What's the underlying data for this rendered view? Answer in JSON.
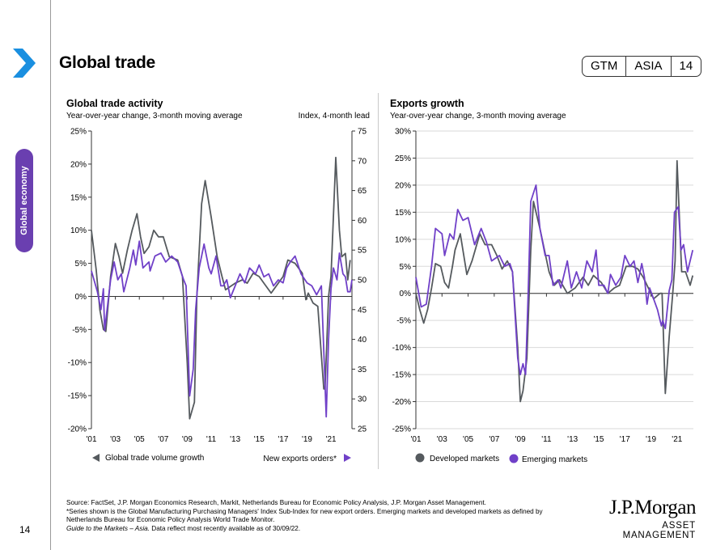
{
  "header": {
    "title": "Global trade",
    "badge": [
      "GTM",
      "ASIA",
      "14"
    ],
    "accent": "#1a8fe0"
  },
  "sidebar": {
    "tab_label": "Global economy",
    "tab_color": "#6a3fb0"
  },
  "page_number": "14",
  "chart_data": [
    {
      "type": "line",
      "title": "Global trade activity",
      "subtitle": "Year-over-year change, 3-month moving average",
      "right_axis_label": "Index, 4-month lead",
      "xlim": [
        2001,
        2022.75
      ],
      "x_ticks": [
        "'01",
        "'03",
        "'05",
        "'07",
        "'09",
        "'11",
        "'13",
        "'15",
        "'17",
        "'19",
        "'21"
      ],
      "ylim": [
        -20,
        25
      ],
      "y_ticks": [
        "-20%",
        "-15%",
        "-10%",
        "-5%",
        "0%",
        "5%",
        "10%",
        "15%",
        "20%",
        "25%"
      ],
      "y2lim": [
        25,
        75
      ],
      "y2_ticks": [
        "25",
        "30",
        "35",
        "40",
        "45",
        "50",
        "55",
        "60",
        "65",
        "70",
        "75"
      ],
      "grid": false,
      "legend_placement": "bottom",
      "series": [
        {
          "name": "Global trade volume growth",
          "axis": "left",
          "color": "#555a5e",
          "x": [
            2001.0,
            2001.4,
            2001.7,
            2002.0,
            2002.2,
            2002.6,
            2003.0,
            2003.3,
            2003.6,
            2004.0,
            2004.4,
            2004.8,
            2005.1,
            2005.4,
            2005.8,
            2006.2,
            2006.6,
            2007.0,
            2007.5,
            2008.2,
            2008.6,
            2009.0,
            2009.2,
            2009.6,
            2009.8,
            2010.2,
            2010.5,
            2011.0,
            2011.5,
            2011.9,
            2012.2,
            2013.0,
            2013.6,
            2014.0,
            2014.5,
            2015.0,
            2015.4,
            2016.0,
            2016.4,
            2017.0,
            2017.4,
            2018.0,
            2018.6,
            2018.9,
            2019.1,
            2019.5,
            2019.9,
            2020.4,
            2020.5,
            2020.8,
            2021.0,
            2021.4,
            2021.7,
            2021.9,
            2022.2,
            2022.4,
            2022.6
          ],
          "y": [
            10,
            4,
            -2,
            -5,
            -5.3,
            3,
            8,
            6,
            3.5,
            7,
            10,
            12.5,
            9,
            6.5,
            7.5,
            10,
            9,
            9,
            6,
            5.5,
            3,
            -10,
            -18.5,
            -16,
            0,
            14,
            17.5,
            12,
            6,
            3,
            1,
            2,
            2.5,
            2,
            3.5,
            3,
            2,
            0.5,
            1.5,
            3,
            5.5,
            5,
            3.5,
            -0.5,
            0.5,
            -1,
            -1.5,
            -14,
            -14,
            0,
            3,
            21,
            10,
            6,
            6.5,
            2.5,
            5.5
          ]
        },
        {
          "name": "New exports orders*",
          "axis": "right",
          "color": "#7040c8",
          "x": [
            2001.0,
            2001.5,
            2001.8,
            2002.0,
            2002.1,
            2002.6,
            2002.9,
            2003.2,
            2003.5,
            2003.7,
            2004.2,
            2004.5,
            2004.7,
            2005.0,
            2005.3,
            2005.8,
            2005.9,
            2006.3,
            2006.8,
            2007.2,
            2007.7,
            2008.2,
            2008.7,
            2008.9,
            2009.2,
            2009.5,
            2009.7,
            2010.0,
            2010.4,
            2010.8,
            2011.0,
            2011.4,
            2011.8,
            2012.0,
            2012.3,
            2012.6,
            2013.0,
            2013.4,
            2013.8,
            2014.2,
            2014.7,
            2015.0,
            2015.4,
            2015.8,
            2016.2,
            2016.6,
            2017.0,
            2017.3,
            2017.6,
            2018.0,
            2018.5,
            2019.0,
            2019.4,
            2019.8,
            2020.2,
            2020.6,
            2020.8,
            2021.0,
            2021.2,
            2021.5,
            2021.7,
            2022.0,
            2022.2,
            2022.4,
            2022.6,
            2022.75
          ],
          "y": [
            51.5,
            48,
            45,
            48.5,
            41.5,
            50,
            53,
            50,
            51,
            48,
            52,
            55,
            52.5,
            56.5,
            52,
            53,
            51.5,
            54,
            54.5,
            53,
            54,
            53,
            50,
            49,
            30.5,
            35,
            45,
            52,
            56,
            52,
            51,
            54,
            49,
            49,
            50,
            47,
            49,
            51,
            49.5,
            52,
            51,
            52.5,
            50.5,
            51,
            49,
            50,
            49.5,
            52,
            53,
            54,
            51,
            49.5,
            49,
            47.5,
            49,
            27,
            40,
            48.5,
            52,
            50,
            54.5,
            51,
            50.5,
            48,
            48,
            50
          ]
        }
      ]
    },
    {
      "type": "line",
      "title": "Exports growth",
      "subtitle": "Year-over-year change, 3-month moving average",
      "xlim": [
        2001,
        2022.25
      ],
      "x_ticks": [
        "'01",
        "'03",
        "'05",
        "'07",
        "'09",
        "'11",
        "'13",
        "'15",
        "'17",
        "'19",
        "'21"
      ],
      "ylim": [
        -25,
        30
      ],
      "y_ticks": [
        "-25%",
        "-20%",
        "-15%",
        "-10%",
        "-5%",
        "0%",
        "5%",
        "10%",
        "15%",
        "20%",
        "25%",
        "30%"
      ],
      "grid": true,
      "legend_placement": "bottom",
      "series": [
        {
          "name": "Developed markets",
          "color": "#555a5e",
          "x": [
            2001.0,
            2001.3,
            2001.6,
            2001.9,
            2002.2,
            2002.5,
            2002.9,
            2003.2,
            2003.5,
            2003.8,
            2004.0,
            2004.4,
            2004.9,
            2005.3,
            2005.9,
            2006.3,
            2006.8,
            2007.2,
            2007.6,
            2008.0,
            2008.4,
            2008.8,
            2009.0,
            2009.2,
            2009.5,
            2009.8,
            2010.0,
            2010.5,
            2011.2,
            2011.6,
            2012.0,
            2012.6,
            2013.2,
            2013.8,
            2014.2,
            2014.6,
            2015.2,
            2015.7,
            2016.2,
            2016.6,
            2017.1,
            2017.6,
            2018.0,
            2018.4,
            2018.8,
            2019.2,
            2019.7,
            2019.85,
            2020.1,
            2020.4,
            2020.7,
            2020.85,
            2021.0,
            2021.35,
            2021.65,
            2022.0,
            2022.2
          ],
          "y": [
            0,
            -3,
            -5.5,
            -3,
            1,
            5.5,
            5,
            2,
            1,
            5,
            8,
            11,
            3.5,
            6,
            11,
            9,
            9,
            7,
            4.5,
            6,
            4,
            -10,
            -20,
            -18,
            -12,
            8,
            17,
            12,
            4,
            1.5,
            2.5,
            0,
            1,
            3,
            1.5,
            3.3,
            2,
            0,
            1,
            1.5,
            5,
            5,
            4.5,
            3,
            1,
            -1,
            0,
            0,
            -18.5,
            -8,
            1,
            6,
            24.5,
            4,
            4,
            1.5,
            3.3
          ]
        },
        {
          "name": "Emerging markets",
          "color": "#7040c8",
          "x": [
            2001.0,
            2001.4,
            2001.8,
            2002.2,
            2002.5,
            2003.0,
            2003.2,
            2003.6,
            2003.9,
            2004.2,
            2004.6,
            2005.0,
            2005.5,
            2006.0,
            2006.4,
            2006.8,
            2007.4,
            2007.8,
            2008.2,
            2008.4,
            2008.8,
            2009.0,
            2009.2,
            2009.4,
            2009.6,
            2009.8,
            2010.2,
            2010.5,
            2010.9,
            2011.2,
            2011.5,
            2011.9,
            2012.1,
            2012.6,
            2012.9,
            2013.3,
            2013.7,
            2014.1,
            2014.5,
            2014.8,
            2015.0,
            2015.4,
            2015.7,
            2015.9,
            2016.3,
            2016.7,
            2017.0,
            2017.4,
            2017.7,
            2018.0,
            2018.3,
            2018.5,
            2018.7,
            2018.9,
            2019.2,
            2019.5,
            2019.8,
            2019.9,
            2020.1,
            2020.4,
            2020.6,
            2020.8,
            2021.1,
            2021.3,
            2021.5,
            2021.8,
            2022.2
          ],
          "y": [
            3,
            -2.5,
            -2,
            5,
            12,
            11,
            7,
            11,
            10,
            15.5,
            13.5,
            14,
            9,
            12,
            9.5,
            6,
            7,
            5,
            5.5,
            4,
            -12,
            -15,
            -13,
            -15,
            0,
            17,
            20,
            12,
            7,
            7,
            1.5,
            2.5,
            1,
            6,
            1,
            4,
            1,
            6,
            4,
            8,
            1.5,
            1.5,
            0,
            3.5,
            1.5,
            3,
            7,
            5,
            6,
            2,
            5.5,
            3,
            -2,
            1,
            -1,
            -3,
            -6,
            -5,
            -6.5,
            0.5,
            2.5,
            15,
            16,
            8,
            9,
            4,
            8
          ]
        }
      ]
    }
  ],
  "footer": {
    "source": "Source: FactSet, J.P. Morgan Economics Research, Markit, Netherlands Bureau for Economic Policy Analysis, J.P. Morgan Asset Management.",
    "note": "*Series shown is the Global Manufacturing Purchasing Managers' Index Sub-Index for new export orders. Emerging markets and developed markets as defined by Netherlands Bureau for Economic Policy Analysis World Trade Monitor.",
    "guide_italic": "Guide to the Markets – Asia.",
    "guide_rest": " Data reflect most recently available as of 30/09/22."
  },
  "logo": {
    "name": "J.P.Morgan",
    "sub": "ASSET MANAGEMENT"
  }
}
